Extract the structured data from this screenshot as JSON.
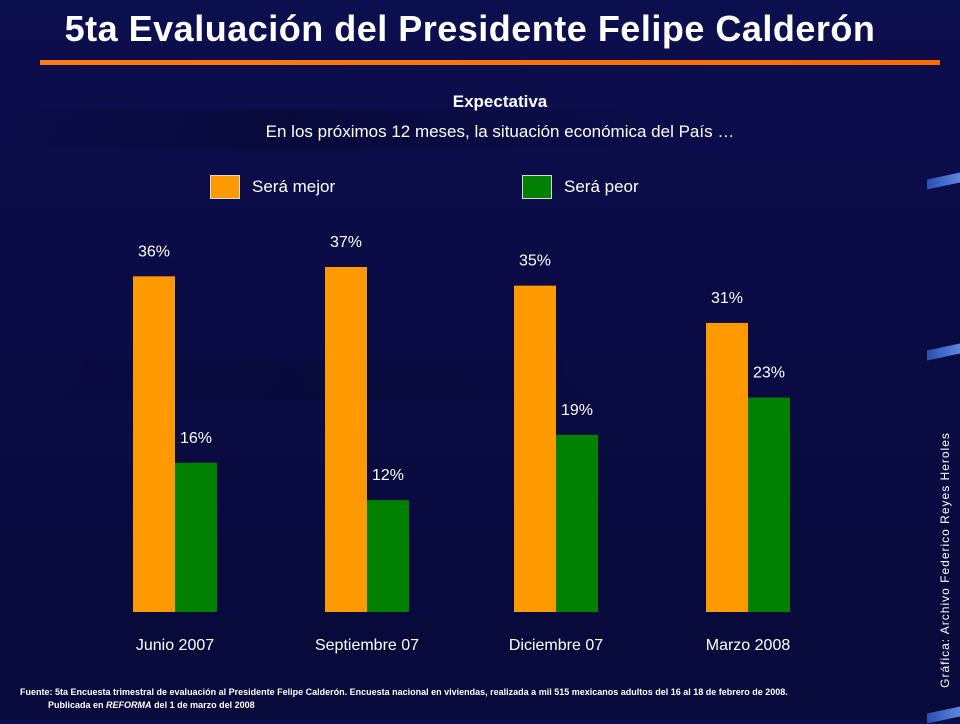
{
  "title": "5ta Evaluación del Presidente Felipe Calderón",
  "subtitle": "Expectativa",
  "question": "En los próximos 12 meses, la situación económica del País …",
  "credit": "Gráfica: Archivo Federico Reyes Heroles",
  "source": {
    "line1": "Fuente: 5ta Encuesta trimestral de evaluación al Presidente Felipe Calderón. Encuesta nacional en viviendas, realizada a mil 515 mexicanos adultos del 16 al 18 de febrero de 2008.",
    "line2_prefix": "Publicada en",
    "line2_pub": "REFORMA",
    "line2_suffix": "del 1 de marzo del 2008"
  },
  "colors": {
    "accent": "#ff6a00",
    "mejor": "#ff9900",
    "peor": "#008000",
    "background": "#0a0b45"
  },
  "chart_data": {
    "type": "bar",
    "categories": [
      "Junio 2007",
      "Septiembre 07",
      "Diciembre 07",
      "Marzo 2008"
    ],
    "series": [
      {
        "name": "Será mejor",
        "values": [
          36,
          37,
          35,
          31
        ],
        "labels": [
          "36%",
          "37%",
          "35%",
          "31%"
        ],
        "color": "#ff9900"
      },
      {
        "name": "Será peor",
        "values": [
          16,
          12,
          19,
          23
        ],
        "labels": [
          "16%",
          "12%",
          "19%",
          "23%"
        ],
        "color": "#008000"
      }
    ],
    "ylim": [
      0,
      37
    ],
    "legend": "top",
    "grid": false
  }
}
